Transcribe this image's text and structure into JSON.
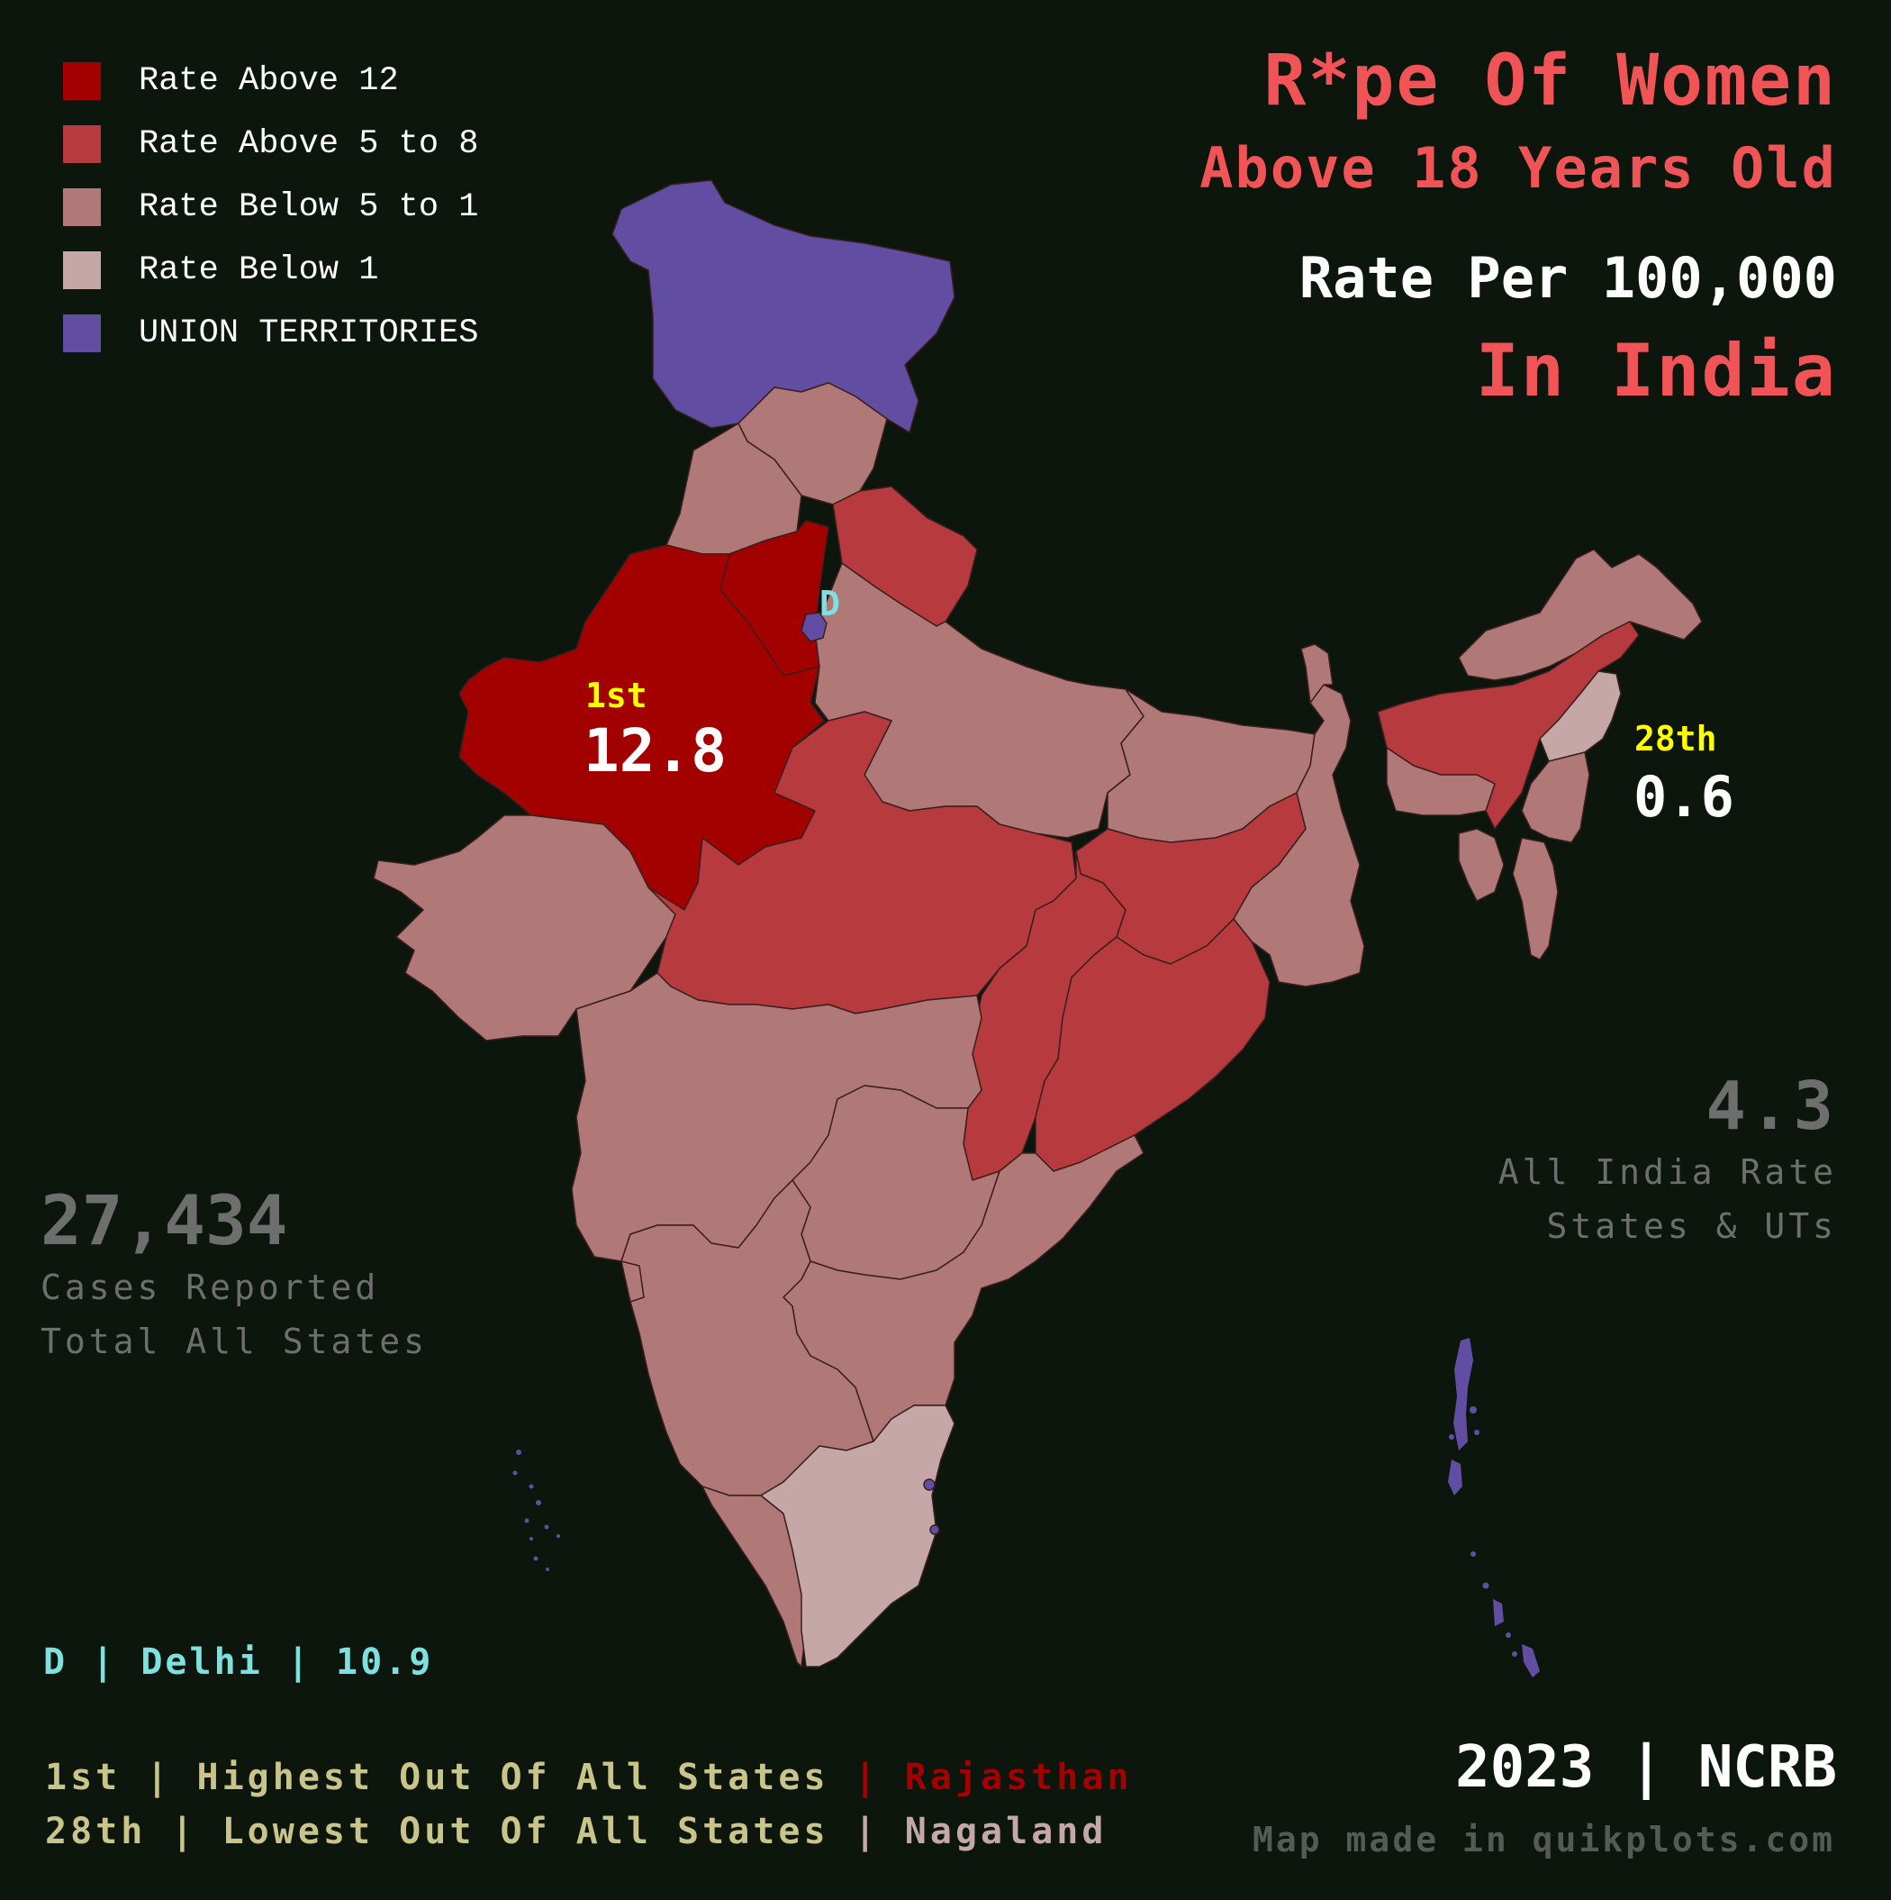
{
  "legend": [
    {
      "label": "Rate Above 12",
      "color": "#a30000"
    },
    {
      "label": "Rate Above 5 to 8",
      "color": "#b73a3e"
    },
    {
      "label": "Rate Below 5 to 1",
      "color": "#b07876"
    },
    {
      "label": "Rate Below 1",
      "color": "#c5a7a7"
    },
    {
      "label": "UNION TERRITORIES",
      "color": "#614ea3"
    }
  ],
  "title": {
    "line1": "R*pe Of Women",
    "line2": "Above 18 Years Old",
    "line3": "Rate Per 100,000",
    "line4": "In India"
  },
  "highest": {
    "rank": "1st",
    "value": "12.8",
    "state": "Rajasthan"
  },
  "lowest": {
    "rank": "28th",
    "value": "0.6",
    "state": "Nagaland"
  },
  "delhi_marker": "D",
  "all_india": {
    "value": "4.3",
    "label1": "All India Rate",
    "label2": "States & UTs"
  },
  "cases": {
    "value": "27,434",
    "label1": "Cases Reported",
    "label2": "Total All States"
  },
  "delhi_note": "D | Delhi | 10.9",
  "footer": {
    "line1_prefix": "1st | Highest Out Of All States",
    "line1_sep": " | ",
    "line1_state": "Rajasthan",
    "line2_prefix": "28th | Lowest Out Of All States",
    "line2_sep": " | ",
    "line2_state": "Nagaland"
  },
  "source": "2023 | NCRB",
  "credit": "Map made in quikplots.com",
  "colors": {
    "background": "#0c160d",
    "rate_above_12": "#a30000",
    "rate_5_to_8": "#b73a3e",
    "rate_1_to_5": "#b07876",
    "rate_below_1": "#c5a7a7",
    "union_territories": "#614ea3",
    "title": "#f05457",
    "rank_label": "#ffff00",
    "delhi": "#7fe0e0",
    "footer_text": "#c9c48a"
  }
}
